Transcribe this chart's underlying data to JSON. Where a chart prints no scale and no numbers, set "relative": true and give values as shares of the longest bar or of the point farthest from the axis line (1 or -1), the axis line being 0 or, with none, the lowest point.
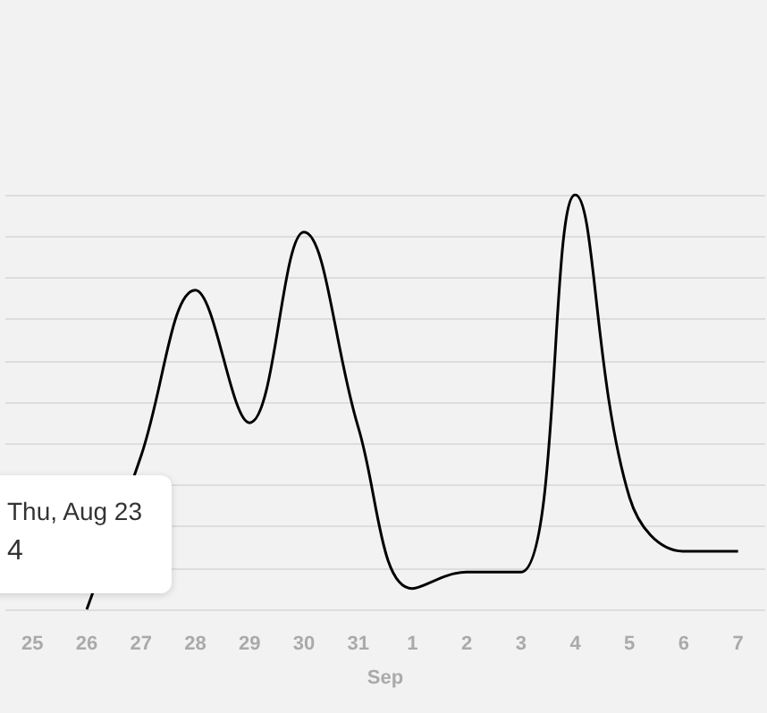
{
  "chart_data": {
    "type": "line",
    "relative": true,
    "categories": [
      "25",
      "26",
      "27",
      "28",
      "29",
      "30",
      "31",
      "1",
      "2",
      "3",
      "4",
      "5",
      "6",
      "7"
    ],
    "series": [
      {
        "color": "#000000",
        "values": [
          null,
          0,
          0.37,
          0.77,
          0.45,
          0.91,
          0.44,
          0.05,
          0.09,
          0.09,
          1,
          0.27,
          0.14,
          0.14
        ]
      }
    ],
    "xlabel": "Sep",
    "annotations": [
      "Thu, Aug 23",
      "4"
    ],
    "grid": "y",
    "marker": "none"
  }
}
